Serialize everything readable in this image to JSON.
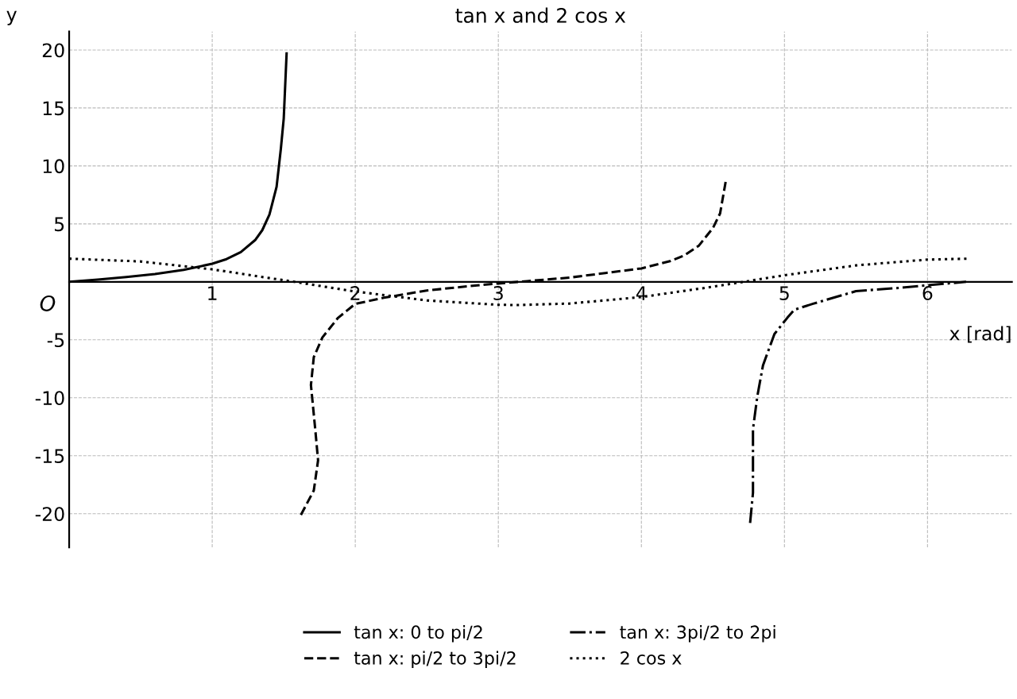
{
  "chart_data": {
    "type": "line",
    "title": "tan x and 2 cos x",
    "xlabel": "x [rad]",
    "ylabel": "y",
    "annotations": [
      {
        "text": "O",
        "x": 0,
        "y": 0
      }
    ],
    "xlim": [
      0,
      6.59
    ],
    "ylim": [
      -22.9,
      21.6
    ],
    "xticks": [
      1,
      2,
      3,
      4,
      5,
      6
    ],
    "yticks": [
      -20,
      -15,
      -10,
      -5,
      5,
      10,
      15,
      20
    ],
    "grid": true,
    "legend": "bottom",
    "marker": "none",
    "series": [
      {
        "name": "tan x: 0 to pi/2",
        "color": "#000000",
        "line_style": "solid",
        "x": [
          0,
          0.2,
          0.4,
          0.6,
          0.8,
          1.0,
          1.1,
          1.2,
          1.3,
          1.35,
          1.4,
          1.45,
          1.48,
          1.5,
          1.52
        ],
        "values": [
          0,
          0.2,
          0.42,
          0.68,
          1.03,
          1.56,
          1.96,
          2.57,
          3.6,
          4.46,
          5.8,
          8.2,
          11.5,
          14.1,
          19.7
        ]
      },
      {
        "name": "tan x: pi/2 to 3pi/2",
        "color": "#000000",
        "line_style": "dashed",
        "x": [
          1.62,
          1.71,
          1.74,
          1.72,
          1.69,
          1.71,
          1.77,
          1.88,
          2.0,
          2.2,
          2.5,
          2.8,
          3.0,
          3.2,
          3.5,
          4.0,
          4.2,
          4.3,
          4.4,
          4.5,
          4.55,
          4.59
        ],
        "values": [
          -20.1,
          -18,
          -15.4,
          -12.7,
          -8.9,
          -6.5,
          -4.8,
          -3.1,
          -1.9,
          -1.37,
          -0.75,
          -0.36,
          -0.14,
          0.06,
          0.37,
          1.16,
          1.78,
          2.28,
          3.1,
          4.64,
          5.9,
          8.7
        ]
      },
      {
        "name": "tan x: 3pi/2 to 2pi",
        "color": "#000000",
        "line_style": "dashdot",
        "x": [
          4.76,
          4.78,
          4.78,
          4.81,
          4.85,
          4.93,
          5.02,
          5.07,
          5.2,
          5.5,
          5.8,
          6.0,
          6.27
        ],
        "values": [
          -20.8,
          -18.2,
          -12.7,
          -9.9,
          -7.2,
          -4.5,
          -3.1,
          -2.4,
          -1.89,
          -0.8,
          -0.52,
          -0.29,
          0
        ]
      },
      {
        "name": "2 cos x",
        "color": "#000000",
        "line_style": "dotted",
        "x": [
          0,
          0.5,
          1.0,
          1.5,
          2.0,
          2.5,
          3.0,
          3.14,
          3.5,
          4.0,
          4.5,
          5.0,
          5.5,
          6.0,
          6.28
        ],
        "values": [
          2,
          1.76,
          1.08,
          0.14,
          -0.83,
          -1.6,
          -1.98,
          -2,
          -1.87,
          -1.31,
          -0.42,
          0.57,
          1.42,
          1.92,
          2
        ]
      }
    ]
  }
}
